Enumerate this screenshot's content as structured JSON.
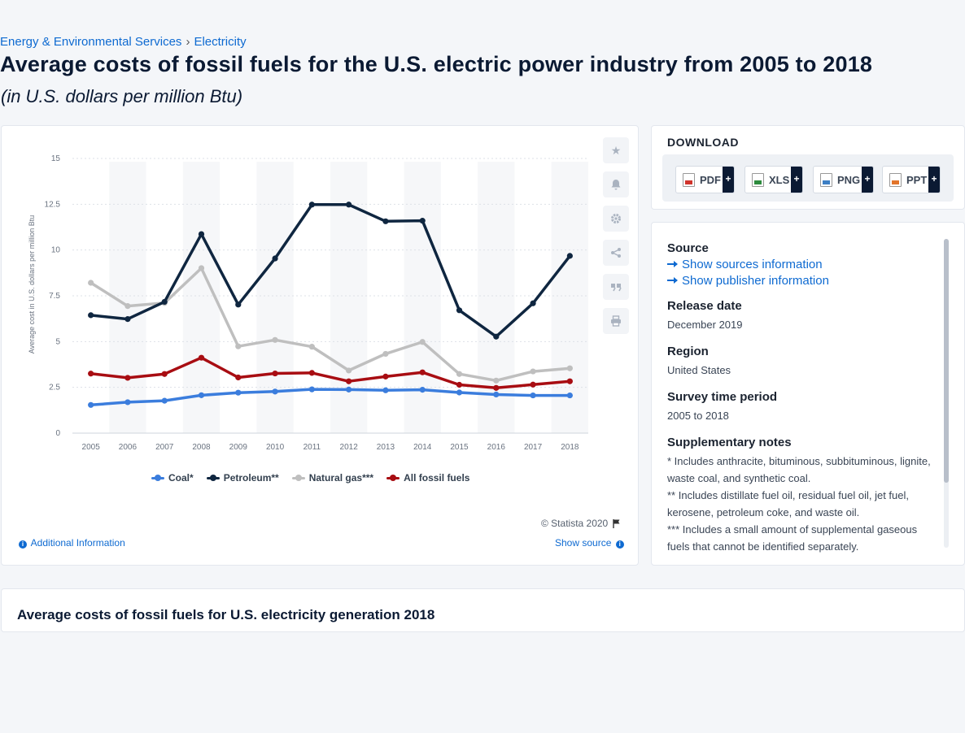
{
  "breadcrumb": {
    "items": [
      "Energy & Environmental Services",
      "Electricity"
    ],
    "separator": "›"
  },
  "page": {
    "title": "Average costs of fossil fuels for the U.S. electric power industry from 2005 to 2018",
    "subtitle": "(in U.S. dollars per million Btu)"
  },
  "chart_data": {
    "type": "line",
    "title": "",
    "xlabel": "",
    "ylabel": "Average cost in U.S. dollars per million Btu",
    "x": [
      2005,
      2006,
      2007,
      2008,
      2009,
      2010,
      2011,
      2012,
      2013,
      2014,
      2015,
      2016,
      2017,
      2018
    ],
    "ylim": [
      0,
      15
    ],
    "yticks": [
      0,
      2.5,
      5,
      7.5,
      10,
      12.5,
      15
    ],
    "grid": true,
    "legend_position": "bottom",
    "series": [
      {
        "name": "Coal*",
        "color": "#3b7ddd",
        "values": [
          1.54,
          1.69,
          1.77,
          2.07,
          2.21,
          2.27,
          2.39,
          2.38,
          2.34,
          2.37,
          2.22,
          2.11,
          2.06,
          2.06
        ]
      },
      {
        "name": "Petroleum**",
        "color": "#0f2640",
        "values": [
          6.44,
          6.23,
          7.17,
          10.87,
          7.02,
          9.54,
          12.48,
          12.48,
          11.57,
          11.6,
          6.71,
          5.27,
          7.09,
          9.68
        ]
      },
      {
        "name": "Natural gas***",
        "color": "#bfbfbf",
        "values": [
          8.21,
          6.94,
          7.11,
          9.01,
          4.74,
          5.09,
          4.72,
          3.42,
          4.33,
          4.98,
          3.23,
          2.87,
          3.37,
          3.54
        ]
      },
      {
        "name": "All fossil fuels",
        "color": "#a80d12",
        "values": [
          3.25,
          3.02,
          3.23,
          4.12,
          3.04,
          3.26,
          3.29,
          2.83,
          3.09,
          3.32,
          2.64,
          2.47,
          2.65,
          2.83
        ]
      }
    ]
  },
  "chart_ui": {
    "copyright": "© Statista 2020",
    "additional_info": "Additional Information",
    "show_source": "Show source",
    "side_buttons": [
      "star-icon",
      "bell-icon",
      "gear-icon",
      "share-icon",
      "quote-icon",
      "print-icon"
    ]
  },
  "download": {
    "heading": "DOWNLOAD",
    "buttons": [
      {
        "label": "PDF",
        "icon": "pdf-file-icon"
      },
      {
        "label": "XLS",
        "icon": "xls-file-icon"
      },
      {
        "label": "PNG",
        "icon": "png-file-icon"
      },
      {
        "label": "PPT",
        "icon": "ppt-file-icon"
      }
    ],
    "plus": "+"
  },
  "info": {
    "source_label": "Source",
    "show_sources": "Show sources information",
    "show_publisher": "Show publisher information",
    "release_label": "Release date",
    "release_value": "December 2019",
    "region_label": "Region",
    "region_value": "United States",
    "survey_label": "Survey time period",
    "survey_value": "2005 to 2018",
    "notes_label": "Supplementary notes",
    "notes": [
      "* Includes anthracite, bituminous, subbituminous, lignite, waste coal, and synthetic coal.",
      "** Includes distillate fuel oil, residual fuel oil, jet fuel, kerosene, petroleum coke, and waste oil.",
      "*** Includes a small amount of supplemental gaseous fuels that cannot be identified separately."
    ]
  },
  "related": {
    "title": "Average costs of fossil fuels for U.S. electricity generation 2018"
  }
}
